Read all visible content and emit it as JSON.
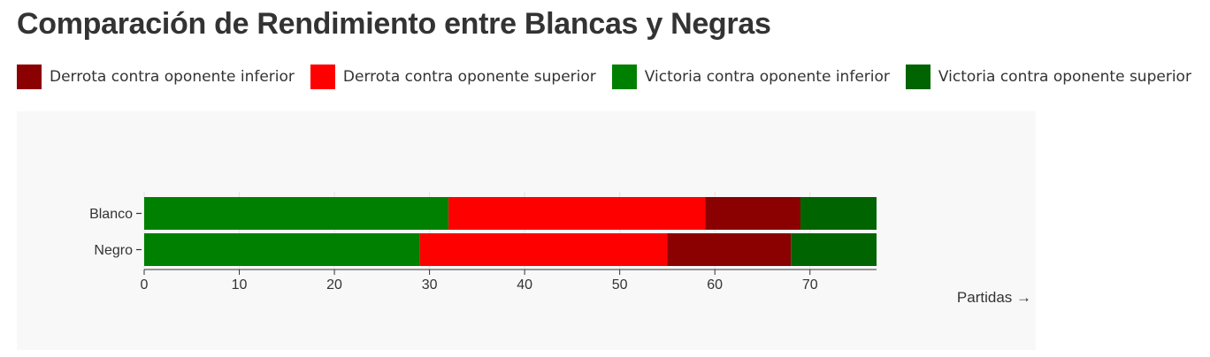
{
  "chart_data": {
    "type": "bar",
    "orientation": "horizontal",
    "stacked": true,
    "title": "Comparación de Rendimiento entre Blancas y Negras",
    "categories": [
      "Blanco",
      "Negro"
    ],
    "series": [
      {
        "name": "Victoria contra oponente inferior",
        "color": "#008000",
        "values": [
          32,
          29
        ]
      },
      {
        "name": "Derrota contra oponente superior",
        "color": "#ff0000",
        "values": [
          27,
          26
        ]
      },
      {
        "name": "Derrota contra oponente inferior",
        "color": "#8b0000",
        "values": [
          10,
          13
        ]
      },
      {
        "name": "Victoria contra oponente superior",
        "color": "#006400",
        "values": [
          8,
          9
        ]
      }
    ],
    "legend": {
      "position": "top-left",
      "order": [
        {
          "name": "Derrota contra oponente inferior",
          "color": "#8b0000"
        },
        {
          "name": "Derrota contra oponente superior",
          "color": "#ff0000"
        },
        {
          "name": "Victoria contra oponente inferior",
          "color": "#008000"
        },
        {
          "name": "Victoria contra oponente superior",
          "color": "#006400"
        }
      ]
    },
    "xlabel": "Partidas →",
    "ylabel": "",
    "xlim": [
      0,
      77
    ],
    "xticks": [
      0,
      10,
      20,
      30,
      40,
      50,
      60,
      70
    ],
    "grid": true,
    "background": "#f8f8f8"
  }
}
